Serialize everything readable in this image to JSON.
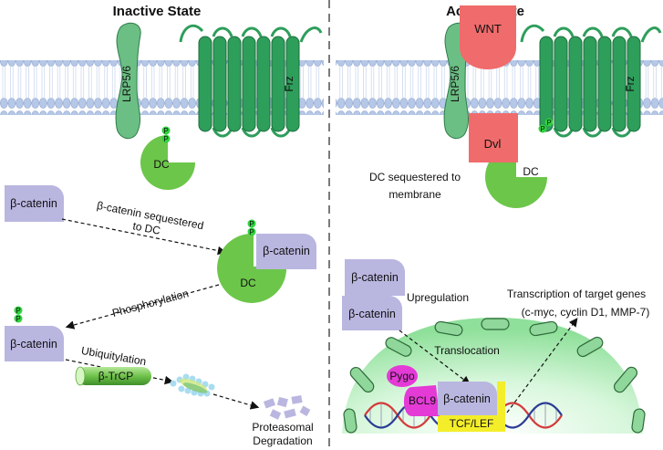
{
  "headers": {
    "inactive": "Inactive State",
    "active": "Active State"
  },
  "receptors": {
    "lrp": "LRP5/6",
    "frz": "Frz",
    "wnt": "WNT",
    "dvl": "Dvl"
  },
  "complex": {
    "dc": "DC",
    "phospho": "P"
  },
  "protein": "β-catenin",
  "inactive": {
    "sequestered_line1": "β-catenin sequestered",
    "sequestered_line2": "to DC",
    "phosphorylation": "Phosphorylation",
    "ubiquitylation": "Ubiquitylation",
    "btrcp": "β-TrCP",
    "degradation_line1": "Proteasomal",
    "degradation_line2": "Degradation"
  },
  "active": {
    "dc_membrane_line1": "DC sequestered to",
    "dc_membrane_line2": "membrane",
    "upregulation": "Upregulation",
    "transcription_line1": "Transcription of target genes",
    "transcription_line2": "(c-myc, cyclin D1, MMP-7)",
    "translocation": "Translocation",
    "pygo": "Pygo",
    "bcl9": "BCL9",
    "tcf": "TCF/LEF"
  },
  "colors": {
    "receptor": "#2e9e5b",
    "receptor_light": "#6cbf84",
    "dc": "#6cc64a",
    "beta_catenin": "#b9b6e0",
    "wnt": "#f06b6b",
    "pygo": "#e43ad6",
    "tcf": "#f4ee2a",
    "nucleus": "#c9f2cf"
  }
}
